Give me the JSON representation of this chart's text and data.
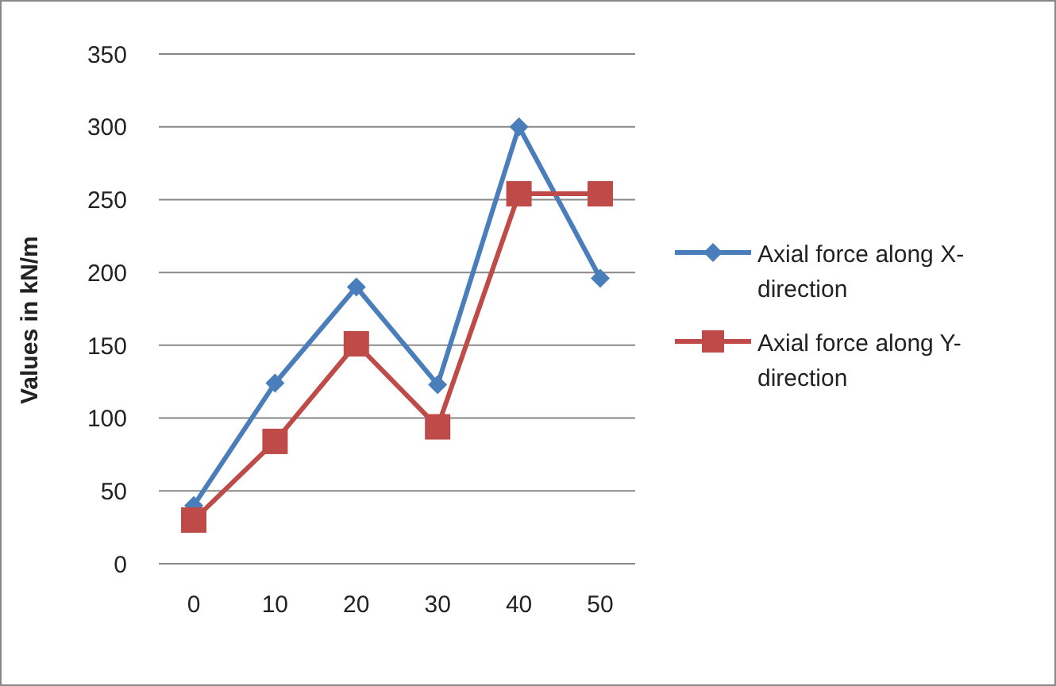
{
  "chart_data": {
    "type": "line",
    "ylabel": "Values in kN/m",
    "categories": [
      "0",
      "10",
      "20",
      "30",
      "40",
      "50"
    ],
    "series": [
      {
        "name": "Axial force along X-direction",
        "color": "#4a7ebb",
        "marker": "diamond",
        "values": [
          40,
          124,
          190,
          123,
          300,
          196
        ]
      },
      {
        "name": "Axial force along Y- direction",
        "color": "#be4b48",
        "marker": "square",
        "values": [
          30,
          84,
          151,
          94,
          254,
          254
        ]
      }
    ],
    "ylim": [
      0,
      350
    ],
    "yticks": [
      0,
      50,
      100,
      150,
      200,
      250,
      300,
      350
    ],
    "grid": "y",
    "legend": "right"
  }
}
